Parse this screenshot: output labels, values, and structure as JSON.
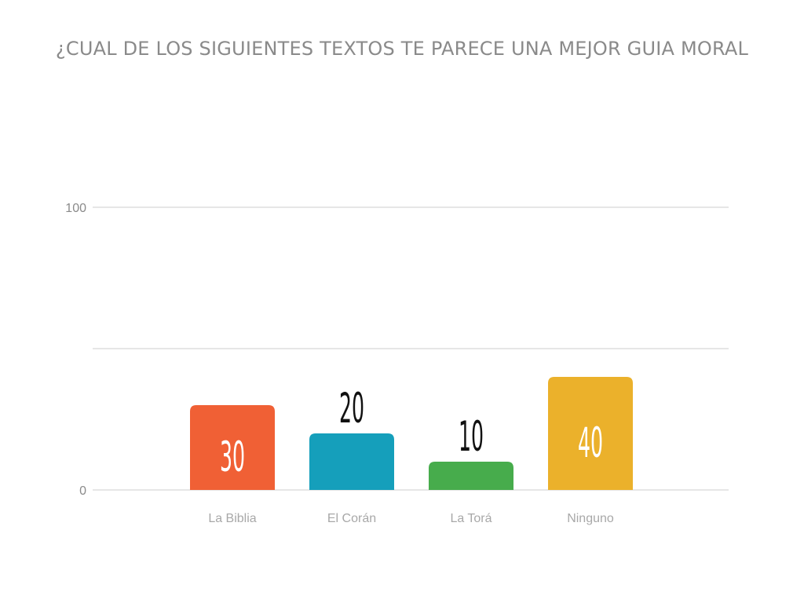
{
  "chart_data": {
    "type": "bar",
    "title": "¿CUAL DE LOS SIGUIENTES TEXTOS TE PARECE UNA MEJOR GUIA MORAL",
    "categories": [
      "La Biblia",
      "El Corán",
      "La Torá",
      "Ninguno"
    ],
    "values": [
      30,
      20,
      10,
      40
    ],
    "colors": [
      "#f06035",
      "#159fbb",
      "#47ac4c",
      "#ebb12b"
    ],
    "ylim": [
      0,
      100
    ],
    "yticks": [
      0,
      100
    ],
    "grid": true,
    "xlabel": "",
    "ylabel": ""
  }
}
